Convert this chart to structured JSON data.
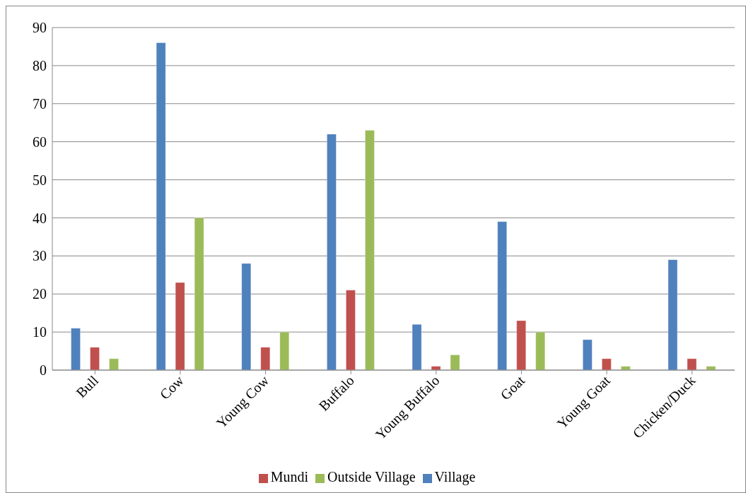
{
  "chart_data": {
    "type": "bar",
    "categories": [
      "Bull",
      "Cow",
      "Young Cow",
      "Buffalo",
      "Young Buffalo",
      "Goat",
      "Young Goat",
      "Chicken/Duck"
    ],
    "series": [
      {
        "name": "Village",
        "color": "#4f81bd",
        "values": [
          11,
          86,
          28,
          62,
          12,
          39,
          8,
          29
        ]
      },
      {
        "name": "Mundi",
        "color": "#c0504d",
        "values": [
          6,
          23,
          6,
          21,
          1,
          13,
          3,
          3
        ]
      },
      {
        "name": "Outside Village",
        "color": "#9bbb59",
        "values": [
          3,
          40,
          10,
          63,
          4,
          10,
          1,
          1
        ]
      }
    ],
    "ylim": [
      0,
      90
    ],
    "yticks": [
      0,
      10,
      20,
      30,
      40,
      50,
      60,
      70,
      80,
      90
    ],
    "grid": "y",
    "legend": "bottom"
  }
}
